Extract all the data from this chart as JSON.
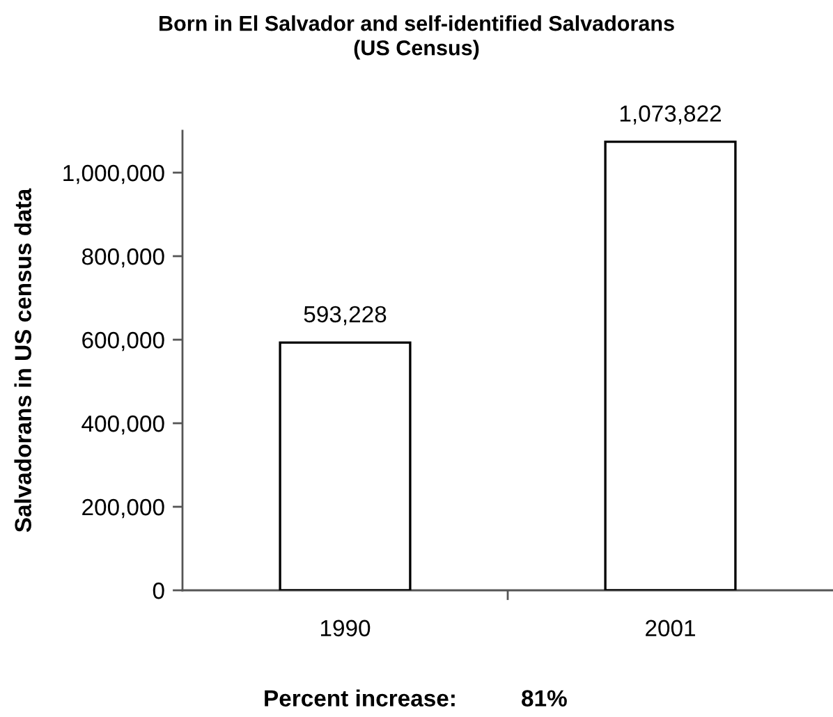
{
  "chart_data": {
    "type": "bar",
    "title": "Born in El Salvador and self-identified Salvadorans\n(US Census)",
    "ylabel": "Salvadorans in US census data",
    "categories": [
      "1990",
      "2001"
    ],
    "values": [
      593228,
      1073822
    ],
    "value_labels": [
      "593,228",
      "1,073,822"
    ],
    "color": "#ffffff",
    "ylim": [
      0,
      1100000
    ],
    "yticks": [
      0,
      {
        "value": 200000,
        "label": "200,000"
      },
      {
        "value": 400000,
        "label": "400,000"
      },
      {
        "value": 600000,
        "label": "600,000"
      },
      {
        "value": 800000,
        "label": "800,000"
      },
      {
        "value": 1000000,
        "label": "1,000,000"
      }
    ],
    "grid": false,
    "legend": false,
    "annotations": [
      "Percent increase:",
      "81%"
    ]
  }
}
